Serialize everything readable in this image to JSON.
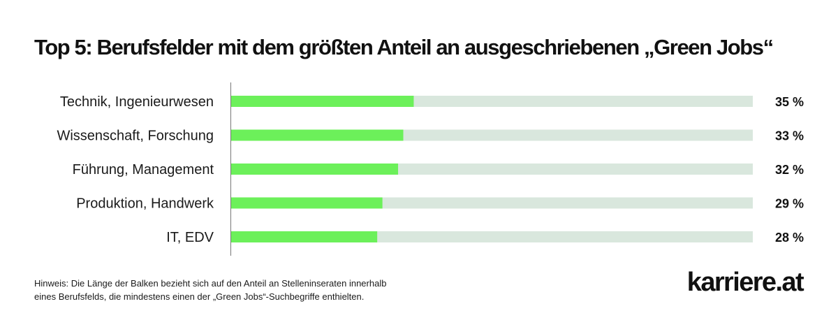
{
  "title": "Top 5: Berufsfelder mit dem größten Anteil an ausgeschriebenen „Green Jobs“",
  "chart_data": {
    "type": "bar",
    "orientation": "horizontal",
    "categories": [
      "Technik, Ingenieurwesen",
      "Wissenschaft, Forschung",
      "Führung, Management",
      "Produktion, Handwerk",
      "IT, EDV"
    ],
    "values": [
      35,
      33,
      32,
      29,
      28
    ],
    "value_labels": [
      "35 %",
      "33 %",
      "32 %",
      "29 %",
      "28 %"
    ],
    "xlim": [
      0,
      100
    ],
    "unit": "%",
    "bar_color": "#6cf05a",
    "track_color": "#d9e7dd"
  },
  "note": {
    "line1": "Hinweis:  Die Länge der Balken bezieht sich auf den Anteil an Stelleninseraten innerhalb",
    "line2": "eines Berufsfelds, die mindestens einen der „Green Jobs“-Suchbegriffe enthielten."
  },
  "logo": "karriere.at"
}
